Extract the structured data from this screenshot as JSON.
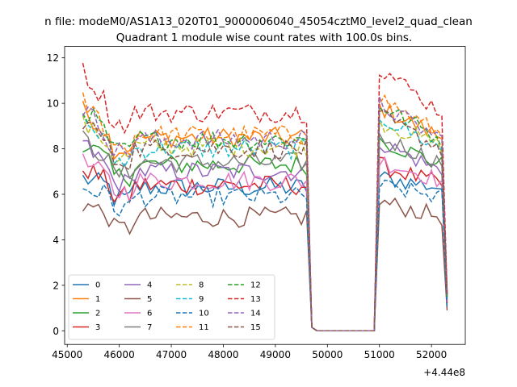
{
  "chart_data": {
    "type": "line",
    "suptitle": "n file: modeM0/AS1A13_020T01_9000006040_45054cztM0_level2_quad_clean",
    "title": "Quadrant 1 module wise count rates with 100.0s bins.",
    "xlabel": "",
    "ylabel": "",
    "x_offset_label": "+4.44e8",
    "xlim": [
      44950,
      52650
    ],
    "ylim": [
      -0.6,
      12.5
    ],
    "x_ticks": [
      45000,
      46000,
      47000,
      48000,
      49000,
      50000,
      51000,
      52000
    ],
    "x_tick_labels": [
      "45000",
      "46000",
      "47000",
      "48000",
      "49000",
      "50000",
      "51000",
      "52000"
    ],
    "y_ticks": [
      0,
      2,
      4,
      6,
      8,
      10,
      12
    ],
    "y_tick_labels": [
      "0",
      "2",
      "4",
      "6",
      "8",
      "10",
      "12"
    ],
    "grid": false,
    "legend_position": "lower-left",
    "legend_columns": 4,
    "series": [
      {
        "name": "0",
        "color": "#1f77b4",
        "dash": "solid",
        "base": 6.3,
        "spike": 0.4,
        "gap_drop": 1.6
      },
      {
        "name": "1",
        "color": "#ff7f0e",
        "dash": "solid",
        "base": 8.5,
        "spike": 1.2,
        "gap_drop": 1.6
      },
      {
        "name": "2",
        "color": "#2ca02c",
        "dash": "solid",
        "base": 7.3,
        "spike": 1.0,
        "gap_drop": 1.3
      },
      {
        "name": "3",
        "color": "#d62728",
        "dash": "solid",
        "base": 6.4,
        "spike": 0.8,
        "gap_drop": 1.2
      },
      {
        "name": "4",
        "color": "#9467bd",
        "dash": "solid",
        "base": 7.0,
        "spike": 1.2,
        "gap_drop": 1.5
      },
      {
        "name": "5",
        "color": "#8c564b",
        "dash": "solid",
        "base": 5.0,
        "spike": 0.6,
        "gap_drop": 0.9
      },
      {
        "name": "6",
        "color": "#e377c2",
        "dash": "solid",
        "base": 6.6,
        "spike": 0.8,
        "gap_drop": 1.3
      },
      {
        "name": "7",
        "color": "#7f7f7f",
        "dash": "solid",
        "base": 7.4,
        "spike": 1.0,
        "gap_drop": 1.4
      },
      {
        "name": "8",
        "color": "#bcbd22",
        "dash": "dashed",
        "base": 8.1,
        "spike": 1.0,
        "gap_drop": 1.5
      },
      {
        "name": "9",
        "color": "#17becf",
        "dash": "dashed",
        "base": 8.0,
        "spike": 1.3,
        "gap_drop": 1.4
      },
      {
        "name": "10",
        "color": "#1f77b4",
        "dash": "dashed",
        "base": 5.9,
        "spike": 0.4,
        "gap_drop": 1.0
      },
      {
        "name": "11",
        "color": "#ff7f0e",
        "dash": "dashed",
        "base": 8.6,
        "spike": 1.5,
        "gap_drop": 1.6
      },
      {
        "name": "12",
        "color": "#2ca02c",
        "dash": "dashed",
        "base": 8.4,
        "spike": 1.4,
        "gap_drop": 1.5
      },
      {
        "name": "13",
        "color": "#d62728",
        "dash": "dashed",
        "base": 9.6,
        "spike": 1.8,
        "gap_drop": 1.7
      },
      {
        "name": "14",
        "color": "#9467bd",
        "dash": "dashed",
        "base": 8.4,
        "spike": 1.4,
        "gap_drop": 1.6
      },
      {
        "name": "15",
        "color": "#8c564b",
        "dash": "dashed",
        "base": 8.0,
        "spike": 1.3,
        "gap_drop": 1.6
      }
    ],
    "segments": {
      "first": {
        "x_start": 45300,
        "x_end": 49600,
        "step": 100
      },
      "gap_points_x": [
        49700,
        49800
      ],
      "gap_values": [
        0.15,
        0.0
      ],
      "zero_from": 49900,
      "zero_to": 50900,
      "second": {
        "x_start": 51000,
        "x_end": 52200,
        "step": 100
      },
      "end_x": 52300
    }
  }
}
